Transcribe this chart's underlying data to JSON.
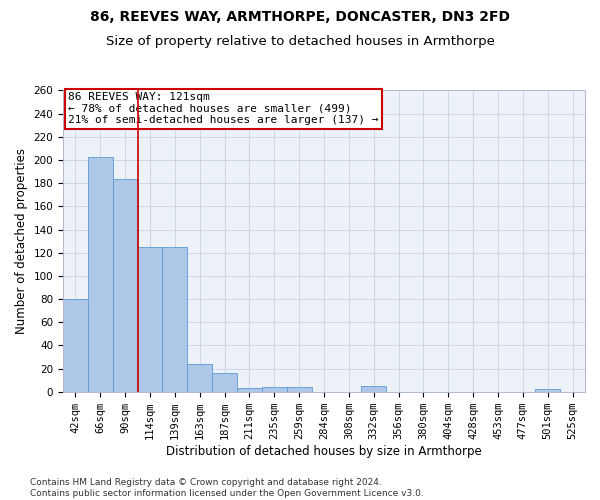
{
  "title1": "86, REEVES WAY, ARMTHORPE, DONCASTER, DN3 2FD",
  "title2": "Size of property relative to detached houses in Armthorpe",
  "xlabel": "Distribution of detached houses by size in Armthorpe",
  "ylabel": "Number of detached properties",
  "categories": [
    "42sqm",
    "66sqm",
    "90sqm",
    "114sqm",
    "139sqm",
    "163sqm",
    "187sqm",
    "211sqm",
    "235sqm",
    "259sqm",
    "284sqm",
    "308sqm",
    "332sqm",
    "356sqm",
    "380sqm",
    "404sqm",
    "428sqm",
    "453sqm",
    "477sqm",
    "501sqm",
    "525sqm"
  ],
  "values": [
    80,
    203,
    184,
    125,
    125,
    24,
    16,
    3,
    4,
    4,
    0,
    0,
    5,
    0,
    0,
    0,
    0,
    0,
    0,
    2,
    0
  ],
  "bar_color": "#aec6e8",
  "bar_edge_color": "#5b9bd5",
  "grid_color": "#cdd7e8",
  "bg_color": "#edf1f8",
  "vline_x": 2.5,
  "vline_color": "#cc0000",
  "annotation_line1": "86 REEVES WAY: 121sqm",
  "annotation_line2": "← 78% of detached houses are smaller (499)",
  "annotation_line3": "21% of semi-detached houses are larger (137) →",
  "annotation_box_color": "#cc0000",
  "ylim": [
    0,
    260
  ],
  "yticks": [
    0,
    20,
    40,
    60,
    80,
    100,
    120,
    140,
    160,
    180,
    200,
    220,
    240,
    260
  ],
  "footer": "Contains HM Land Registry data © Crown copyright and database right 2024.\nContains public sector information licensed under the Open Government Licence v3.0.",
  "title1_fontsize": 10,
  "title2_fontsize": 9.5,
  "xlabel_fontsize": 8.5,
  "ylabel_fontsize": 8.5,
  "tick_fontsize": 7.5,
  "annotation_fontsize": 8,
  "footer_fontsize": 6.5
}
